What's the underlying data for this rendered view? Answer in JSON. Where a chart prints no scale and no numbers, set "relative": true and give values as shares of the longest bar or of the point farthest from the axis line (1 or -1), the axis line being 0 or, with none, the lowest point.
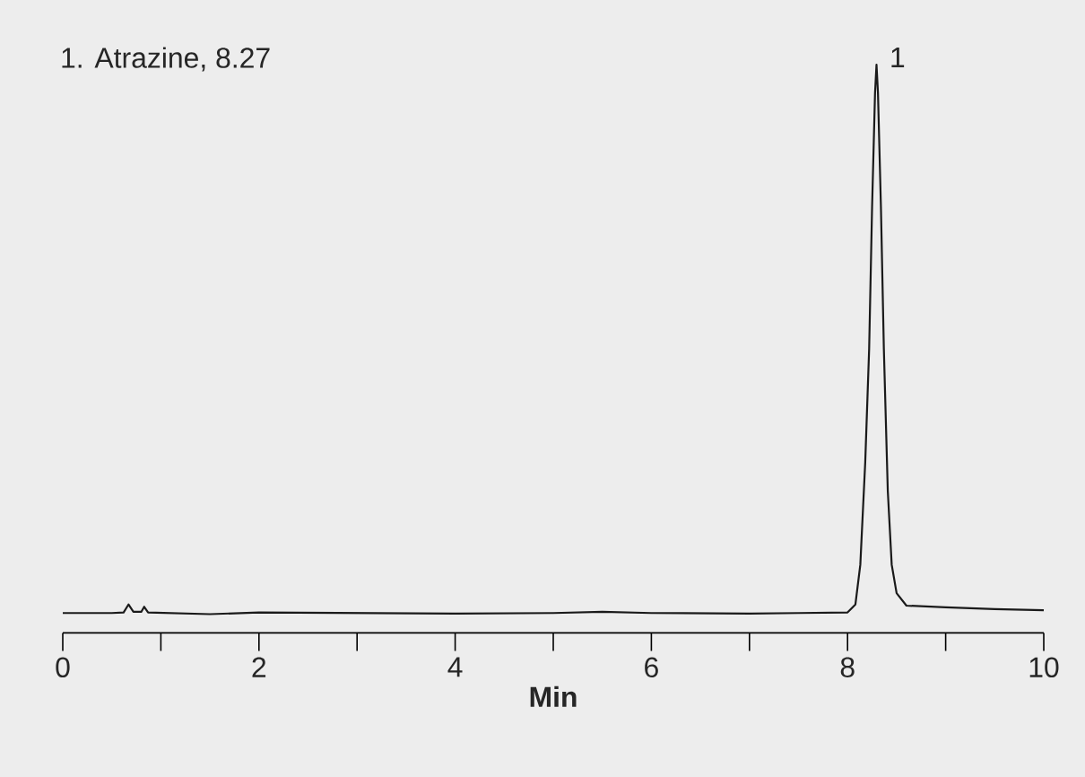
{
  "chart_data": {
    "type": "line",
    "relative": true,
    "xlabel": "Min",
    "xlim": [
      0,
      10
    ],
    "xticks": [
      0,
      {
        "value": 1,
        "label": null
      },
      2,
      {
        "value": 3,
        "label": null
      },
      4,
      {
        "value": 5,
        "label": null
      },
      6,
      {
        "value": 7,
        "label": null
      },
      8,
      {
        "value": 9,
        "label": null
      },
      10
    ],
    "annotations": [
      "1. Atrazine, 8.27",
      {
        "text": "1",
        "x": 8.29,
        "y": 1
      }
    ],
    "series": [
      {
        "color": "#1a1a1a",
        "x": [
          0,
          0.5,
          0.62,
          0.67,
          0.72,
          0.8,
          0.83,
          0.87,
          1.5,
          2,
          3,
          4,
          5,
          5.5,
          6,
          7,
          7.5,
          8,
          8.08,
          8.13,
          8.18,
          8.22,
          8.25,
          8.28,
          8.295,
          8.31,
          8.34,
          8.37,
          8.41,
          8.45,
          8.5,
          8.6,
          9,
          9.5,
          10
        ],
        "values": [
          0.035,
          0.035,
          0.036,
          0.05,
          0.037,
          0.037,
          0.046,
          0.036,
          0.033,
          0.036,
          0.035,
          0.034,
          0.035,
          0.037,
          0.035,
          0.034,
          0.035,
          0.036,
          0.05,
          0.12,
          0.3,
          0.5,
          0.75,
          0.95,
          1,
          0.95,
          0.75,
          0.5,
          0.25,
          0.12,
          0.07,
          0.048,
          0.045,
          0.042,
          0.04
        ]
      }
    ]
  }
}
